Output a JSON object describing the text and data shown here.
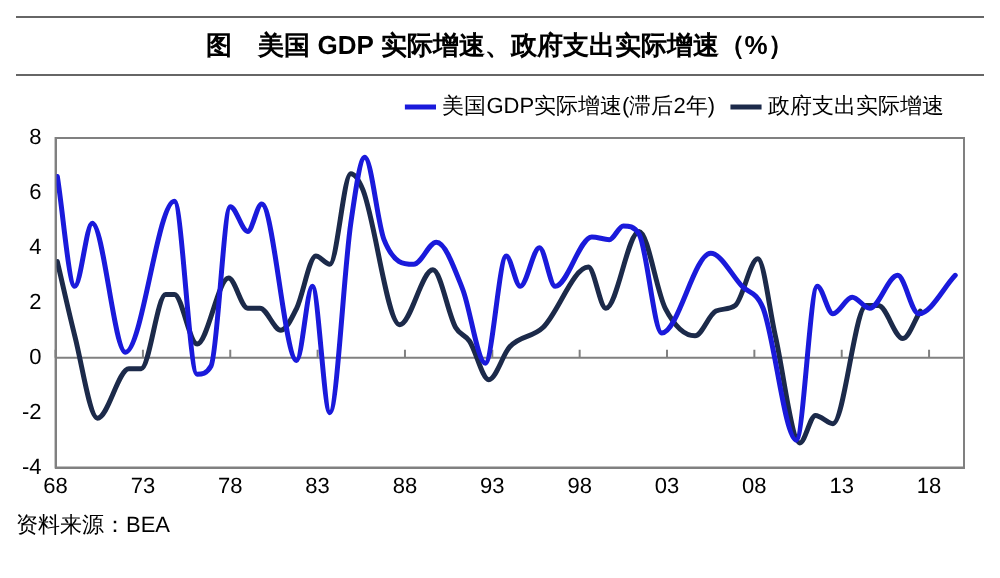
{
  "chart_data": {
    "type": "line",
    "title": "图　美国 GDP 实际增速、政府支出实际增速（%）",
    "annotations": [
      "资料来源：BEA"
    ],
    "xlim": [
      1968,
      2020
    ],
    "xticks": [
      {
        "value": 1968,
        "label": "68"
      },
      {
        "value": 1973,
        "label": "73"
      },
      {
        "value": 1978,
        "label": "78"
      },
      {
        "value": 1983,
        "label": "83"
      },
      {
        "value": 1988,
        "label": "88"
      },
      {
        "value": 1993,
        "label": "93"
      },
      {
        "value": 1998,
        "label": "98"
      },
      {
        "value": 2003,
        "label": "03"
      },
      {
        "value": 2008,
        "label": "08"
      },
      {
        "value": 2013,
        "label": "13"
      },
      {
        "value": 2018,
        "label": "18"
      }
    ],
    "ylim": [
      -4,
      8
    ],
    "yticks": [
      -4,
      -2,
      0,
      2,
      4,
      6,
      8
    ],
    "grid": false,
    "legend": "top right",
    "marker": "none",
    "line_style": "solid",
    "ref_lines": [
      {
        "axis": "y",
        "value": 0,
        "color": "#808080"
      }
    ],
    "series": [
      {
        "name": "美国GDP实际增速(滞后2年)",
        "color": "#1a1adb",
        "x": [
          1968.1,
          1969.1,
          1970.1,
          1972,
          1974.8,
          1976.1,
          1976.9,
          1978,
          1979,
          1979.8,
          1981.8,
          1982.7,
          1983.7,
          1984.9,
          1985.7,
          1986.8,
          1988.5,
          1989.8,
          1991.3,
          1992.6,
          1993.8,
          1994.6,
          1995.7,
          1996.6,
          1998.7,
          1999.7,
          2000.5,
          2001.4,
          2002.7,
          2005.5,
          2007.3,
          2008.5,
          2010.4,
          2011.6,
          2012.5,
          2013.6,
          2014.6,
          2016.2,
          2017.4,
          2019.5
        ],
        "values": [
          6.6,
          2.6,
          4.9,
          0.2,
          5.7,
          -0.6,
          -0.3,
          5.5,
          4.6,
          5.6,
          -0.1,
          2.6,
          -2.0,
          4.9,
          7.3,
          4.3,
          3.4,
          4.2,
          2.5,
          -0.2,
          3.7,
          2.6,
          4.0,
          2.6,
          4.4,
          4.3,
          4.8,
          4.5,
          0.9,
          3.8,
          2.6,
          1.8,
          -3.0,
          2.6,
          1.6,
          2.2,
          1.8,
          3.0,
          1.6,
          3.0
        ]
      },
      {
        "name": "政府支出实际增速",
        "color": "#1c2a4a",
        "x": [
          1968.1,
          1969.1,
          1970.4,
          1972.2,
          1972.9,
          1974.3,
          1974.8,
          1976.1,
          1977.9,
          1979,
          1979.7,
          1980.9,
          1981.8,
          1982.9,
          1983.7,
          1984.9,
          1985.6,
          1987.7,
          1989.6,
          1990.9,
          1991.7,
          1992.8,
          1994,
          1995.9,
          1998.5,
          1999.5,
          2001.4,
          2002.9,
          2004.6,
          2005.8,
          2006.9,
          2008.2,
          2009.2,
          2010.6,
          2011.5,
          2012.5,
          2014.4,
          2015.1,
          2016.5,
          2017.5
        ],
        "values": [
          3.5,
          0.8,
          -2.2,
          -0.4,
          -0.4,
          2.3,
          2.3,
          0.5,
          2.9,
          1.8,
          1.8,
          1.0,
          1.8,
          3.7,
          3.4,
          6.7,
          6.1,
          1.2,
          3.2,
          1.1,
          0.6,
          -0.8,
          0.4,
          1.1,
          3.3,
          1.8,
          4.6,
          1.8,
          0.8,
          1.7,
          1.9,
          3.6,
          0.8,
          -3.1,
          -2.1,
          -2.4,
          1.9,
          1.9,
          0.7,
          1.7
        ]
      }
    ]
  }
}
